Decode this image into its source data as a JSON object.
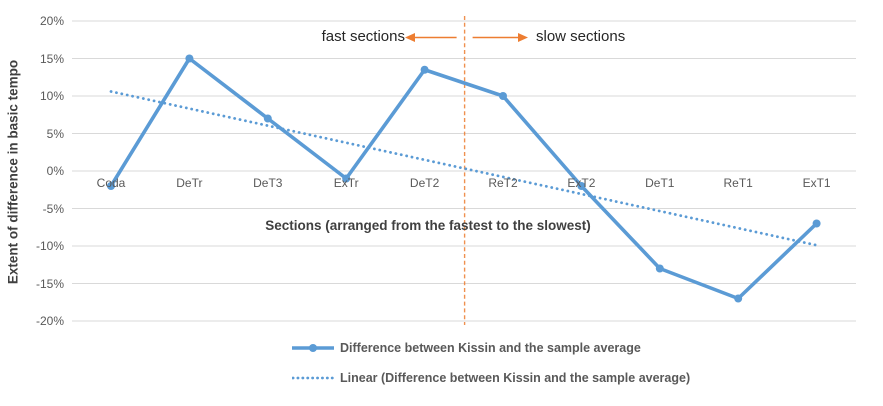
{
  "chart_data": {
    "type": "line",
    "categories": [
      "Coda",
      "DeTr",
      "DeT3",
      "ExTr",
      "DeT2",
      "ReT2",
      "ExT2",
      "DeT1",
      "ReT1",
      "ExT1"
    ],
    "series": [
      {
        "name": "Difference between Kissin and the sample average",
        "values": [
          -2,
          15,
          7,
          -1,
          13.5,
          10,
          -2,
          -13,
          -17,
          -7
        ]
      }
    ],
    "trendline": {
      "name": "Linear (Difference between Kissin and the sample average)",
      "start_value": 10.6,
      "end_value": -9.9
    },
    "ylabel": "Extent of difference in basic tempo",
    "xlabel": "Sections (arranged from the fastest to the slowest)",
    "ylim": [
      -20,
      20
    ],
    "ytick_step": 5,
    "ytick_labels": [
      "20%",
      "15%",
      "10%",
      "5%",
      "0%",
      "-5%",
      "-10%",
      "-15%",
      "-20%"
    ],
    "grid": true,
    "legend_position": "bottom",
    "separator": {
      "between": [
        "DeT2",
        "ReT2"
      ],
      "left_label": "fast sections",
      "right_label": "slow sections"
    }
  },
  "annotations": {
    "fast_label": "fast sections",
    "slow_label": "slow sections"
  },
  "axis": {
    "x_title": "Sections (arranged from the fastest to the slowest)",
    "y_title": "Extent of difference in basic tempo"
  },
  "legend": {
    "series_label": "Difference between Kissin and the sample average",
    "trend_label": "Linear (Difference between Kissin and the sample average)"
  },
  "colors": {
    "series": "#5B9BD5",
    "trend": "#5B9BD5",
    "separator": "#ED7D31",
    "arrow": "#ED7D31",
    "grid": "#D9D9D9",
    "tick_text": "#595959",
    "title_text": "#404040",
    "annotation_text": "#262626"
  }
}
